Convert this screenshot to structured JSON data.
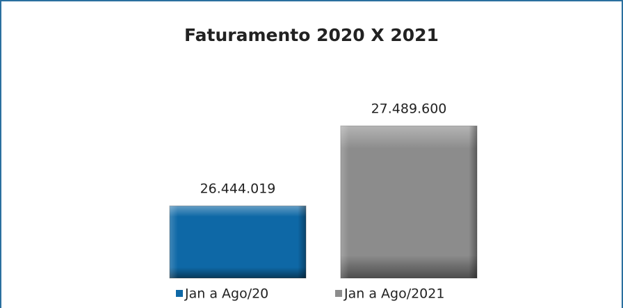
{
  "chart_data": {
    "type": "bar",
    "title": "Faturamento 2020 X 2021",
    "categories": [
      null
    ],
    "series": [
      {
        "name": "Jan a Ago/20",
        "color": "#0e68a6",
        "values": [
          26444019
        ],
        "value_labels": [
          "26.444.019"
        ]
      },
      {
        "name": "Jan a Ago/2021",
        "color": "#8c8c8c",
        "values": [
          27489600
        ],
        "value_labels": [
          "27.489.600"
        ]
      }
    ],
    "ylim": [
      25500000,
      28000000
    ],
    "legend": "bottom"
  }
}
